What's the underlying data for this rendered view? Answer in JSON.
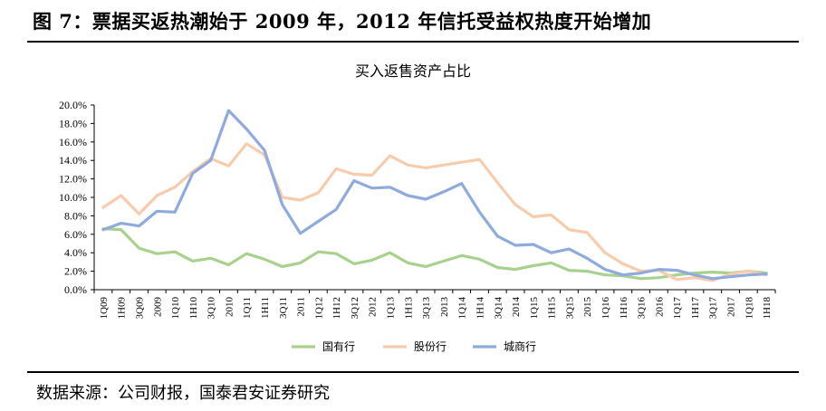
{
  "header": {
    "figure_title": "图 7：票据买返热潮始于 2009 年，2012 年信托受益权热度开始增加"
  },
  "footer": {
    "source": "数据来源：公司财报，国泰君安证券研究"
  },
  "chart_data": {
    "type": "line",
    "title": "买入返售资产占比",
    "xlabel": "",
    "ylabel": "",
    "ylim": [
      0,
      20
    ],
    "y_ticks": [
      "0.0%",
      "2.0%",
      "4.0%",
      "6.0%",
      "8.0%",
      "10.0%",
      "12.0%",
      "14.0%",
      "16.0%",
      "18.0%",
      "20.0%"
    ],
    "grid": false,
    "legend_position": "bottom",
    "categories": [
      "1Q09",
      "1H09",
      "3Q09",
      "2009",
      "1Q10",
      "1H10",
      "3Q10",
      "2010",
      "1Q11",
      "1H11",
      "3Q11",
      "2011",
      "1Q12",
      "1H12",
      "3Q12",
      "2012",
      "1Q13",
      "1H13",
      "3Q13",
      "2013",
      "1Q14",
      "1H14",
      "3Q14",
      "2014",
      "1Q15",
      "1H15",
      "3Q15",
      "2015",
      "1Q16",
      "1H16",
      "3Q16",
      "2016",
      "1Q17",
      "1H17",
      "3Q17",
      "2017",
      "1Q18",
      "1H18"
    ],
    "series": [
      {
        "name": "国有行",
        "color": "#a9d18e",
        "values": [
          6.6,
          6.5,
          4.5,
          3.9,
          4.1,
          3.1,
          3.4,
          2.7,
          3.9,
          3.3,
          2.5,
          2.9,
          4.1,
          3.9,
          2.8,
          3.2,
          4.0,
          2.9,
          2.5,
          3.1,
          3.7,
          3.3,
          2.4,
          2.2,
          2.6,
          2.9,
          2.1,
          2.0,
          1.6,
          1.5,
          1.2,
          1.3,
          1.6,
          1.8,
          1.9,
          1.8,
          2.0,
          1.8
        ]
      },
      {
        "name": "股份行",
        "color": "#f8cbad",
        "values": [
          8.9,
          10.2,
          8.2,
          10.2,
          11.1,
          12.8,
          14.2,
          13.4,
          15.8,
          14.6,
          10.0,
          9.7,
          10.5,
          13.1,
          12.5,
          12.4,
          14.5,
          13.5,
          13.2,
          13.5,
          13.8,
          14.1,
          11.6,
          9.2,
          7.9,
          8.1,
          6.5,
          6.2,
          4.0,
          2.8,
          2.0,
          2.1,
          1.1,
          1.3,
          1.0,
          1.7,
          2.0,
          1.6
        ]
      },
      {
        "name": "城商行",
        "color": "#8faadc",
        "values": [
          6.5,
          7.2,
          6.9,
          8.5,
          8.4,
          12.6,
          14.0,
          19.4,
          17.4,
          15.1,
          9.2,
          6.1,
          7.4,
          8.7,
          11.8,
          11.0,
          11.1,
          10.2,
          9.8,
          10.6,
          11.5,
          8.4,
          5.8,
          4.8,
          4.9,
          4.0,
          4.4,
          3.4,
          2.2,
          1.6,
          1.8,
          2.2,
          2.1,
          1.6,
          1.2,
          1.4,
          1.6,
          1.7
        ]
      }
    ]
  }
}
